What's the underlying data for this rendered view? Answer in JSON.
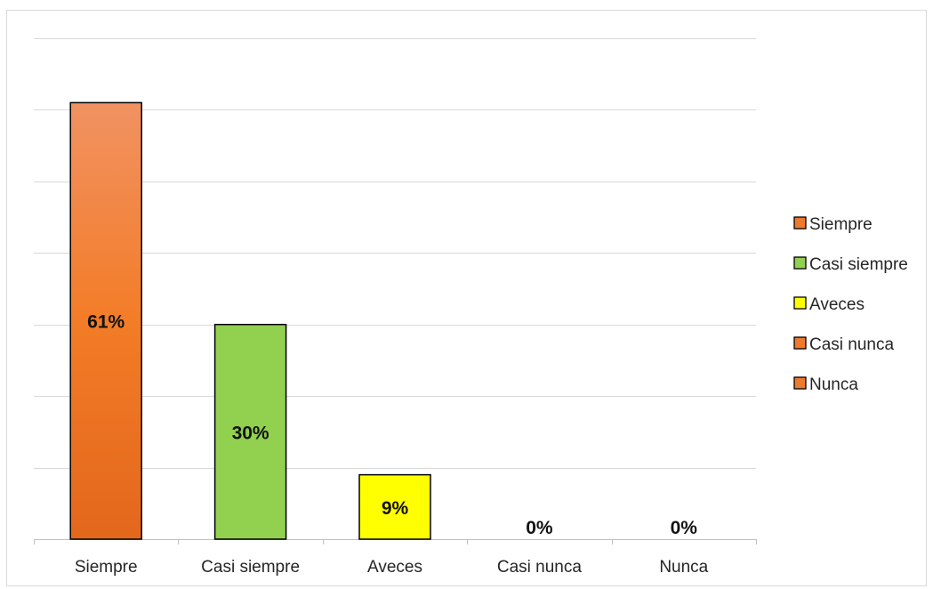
{
  "chart_data": {
    "type": "bar",
    "categories": [
      "Siempre",
      "Casi siempre",
      "Aveces",
      "Casi nunca",
      "Nunca"
    ],
    "values": [
      61,
      30,
      9,
      0,
      0
    ],
    "data_labels": [
      "61%",
      "30%",
      "9%",
      "0%",
      "0%"
    ],
    "ylim": [
      0,
      70
    ],
    "grid": true,
    "legend_position": "right",
    "legend": [
      "Siempre",
      "Casi siempre",
      "Aveces",
      "Casi nunca",
      "Nunca"
    ],
    "colors": [
      "#EE7A2E",
      "#92D050",
      "#FFFF00",
      "#EE7A2E",
      "#EE7A2E"
    ]
  }
}
